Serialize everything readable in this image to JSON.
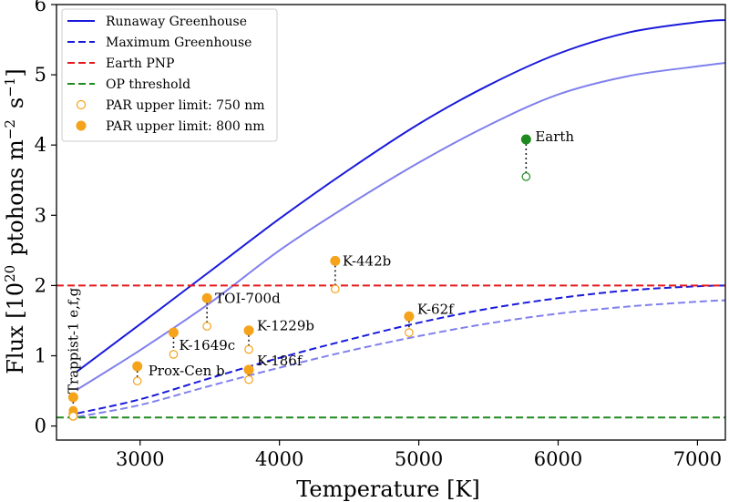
{
  "chart_data": {
    "type": "line",
    "title": "",
    "xlabel": "Temperature [K]",
    "ylabel": "Flux [10$^{20}$  ptohons m$^{-2}$  s$^{-1}$]",
    "ylabel_parts": {
      "base": "Flux [10",
      "exp1": "20",
      "mid": "ptohons m",
      "exp2": "−2",
      "s": "s",
      "exp3": "−1",
      "end": "]"
    },
    "xlim": [
      2400,
      7200
    ],
    "ylim": [
      -0.2,
      6.0
    ],
    "x_ticks": [
      3000,
      4000,
      5000,
      6000,
      7000
    ],
    "x_tick_labels": [
      "3000",
      "4000",
      "5000",
      "6000",
      "7000"
    ],
    "y_ticks": [
      0,
      1,
      2,
      3,
      4,
      5,
      6
    ],
    "y_tick_labels": [
      "0",
      "1",
      "2",
      "3",
      "4",
      "5",
      "6"
    ],
    "grid": false,
    "legend_position": "top-left",
    "legend": [
      {
        "label": "Runaway Greenhouse",
        "style": "solid",
        "color": "#1a1adb",
        "marker": "line"
      },
      {
        "label": "Maximum Greenhouse",
        "style": "dashed",
        "color": "#1a1adb",
        "marker": "line"
      },
      {
        "label": "Earth PNP",
        "style": "dashed",
        "color": "#e31a1c",
        "marker": "line"
      },
      {
        "label": "OP threshold",
        "style": "dashed",
        "color": "#1f8a1f",
        "marker": "line"
      },
      {
        "label": "PAR upper limit: 750 nm",
        "color": "#f5a31a",
        "marker": "open-circle"
      },
      {
        "label": "PAR upper limit: 800 nm",
        "color": "#f5a31a",
        "marker": "filled-circle"
      }
    ],
    "colors": {
      "runaway": "#1a1adb",
      "runaway_light": "#8080ee",
      "maximum": "#1a1adb",
      "maximum_light": "#8080ee",
      "earth_pnp": "#e31a1c",
      "op_threshold": "#1f8a1f",
      "planet": "#f5a31a",
      "earth_point": "#1f8a1f"
    },
    "series": [
      {
        "key": "runaway",
        "style": "solid",
        "x": [
          2550,
          3000,
          3500,
          4000,
          4500,
          5000,
          5500,
          6000,
          6500,
          7000,
          7200
        ],
        "y": [
          0.78,
          1.45,
          2.2,
          2.95,
          3.65,
          4.3,
          4.85,
          5.3,
          5.6,
          5.75,
          5.78
        ]
      },
      {
        "key": "runaway_light",
        "style": "solid",
        "x": [
          2550,
          3000,
          3500,
          4000,
          4500,
          5000,
          5500,
          6000,
          6500,
          7000,
          7200
        ],
        "y": [
          0.52,
          1.08,
          1.75,
          2.5,
          3.15,
          3.75,
          4.28,
          4.72,
          4.98,
          5.12,
          5.17
        ]
      },
      {
        "key": "maximum",
        "style": "dashed",
        "x": [
          2550,
          3000,
          3500,
          4000,
          4500,
          5000,
          5500,
          6000,
          6500,
          7000,
          7200
        ],
        "y": [
          0.18,
          0.38,
          0.68,
          0.97,
          1.23,
          1.47,
          1.67,
          1.82,
          1.93,
          1.99,
          2.0
        ]
      },
      {
        "key": "maximum_light",
        "style": "dashed",
        "x": [
          2550,
          3000,
          3500,
          4000,
          4500,
          5000,
          5500,
          6000,
          6500,
          7000,
          7200
        ],
        "y": [
          0.13,
          0.3,
          0.57,
          0.83,
          1.07,
          1.28,
          1.46,
          1.6,
          1.7,
          1.77,
          1.79
        ]
      },
      {
        "key": "earth_pnp",
        "style": "dashed",
        "x": [
          2400,
          7200
        ],
        "y": [
          2.0,
          2.0
        ]
      },
      {
        "key": "op_threshold",
        "style": "dashed",
        "x": [
          2400,
          7200
        ],
        "y": [
          0.12,
          0.12
        ]
      }
    ],
    "planets": [
      {
        "name": "Trappist-1 e,f,g",
        "x": 2520,
        "y800": 0.41,
        "y750": 0.14,
        "color": "#f5a31a",
        "label_rot": true,
        "stack": [
          0.41,
          0.22,
          0.18,
          0.14
        ]
      },
      {
        "name": "Prox-Cen b",
        "x": 2980,
        "y800": 0.85,
        "y750": 0.64,
        "color": "#f5a31a"
      },
      {
        "name": "K-1649c",
        "x": 3240,
        "y800": 1.33,
        "y750": 1.02,
        "color": "#f5a31a"
      },
      {
        "name": "TOI-700d",
        "x": 3480,
        "y800": 1.82,
        "y750": 1.42,
        "color": "#f5a31a"
      },
      {
        "name": "K-1229b",
        "x": 3780,
        "y800": 1.36,
        "y750": 1.09,
        "color": "#f5a31a"
      },
      {
        "name": "K-186f",
        "x": 3780,
        "y800": 0.8,
        "y750": 0.66,
        "color": "#f5a31a"
      },
      {
        "name": "K-442b",
        "x": 4400,
        "y800": 2.35,
        "y750": 1.95,
        "color": "#f5a31a"
      },
      {
        "name": "K-62f",
        "x": 4930,
        "y800": 1.56,
        "y750": 1.33,
        "color": "#f5a31a"
      },
      {
        "name": "Earth",
        "x": 5770,
        "y800": 4.08,
        "y750": 3.55,
        "color": "#1f8a1f"
      }
    ]
  }
}
